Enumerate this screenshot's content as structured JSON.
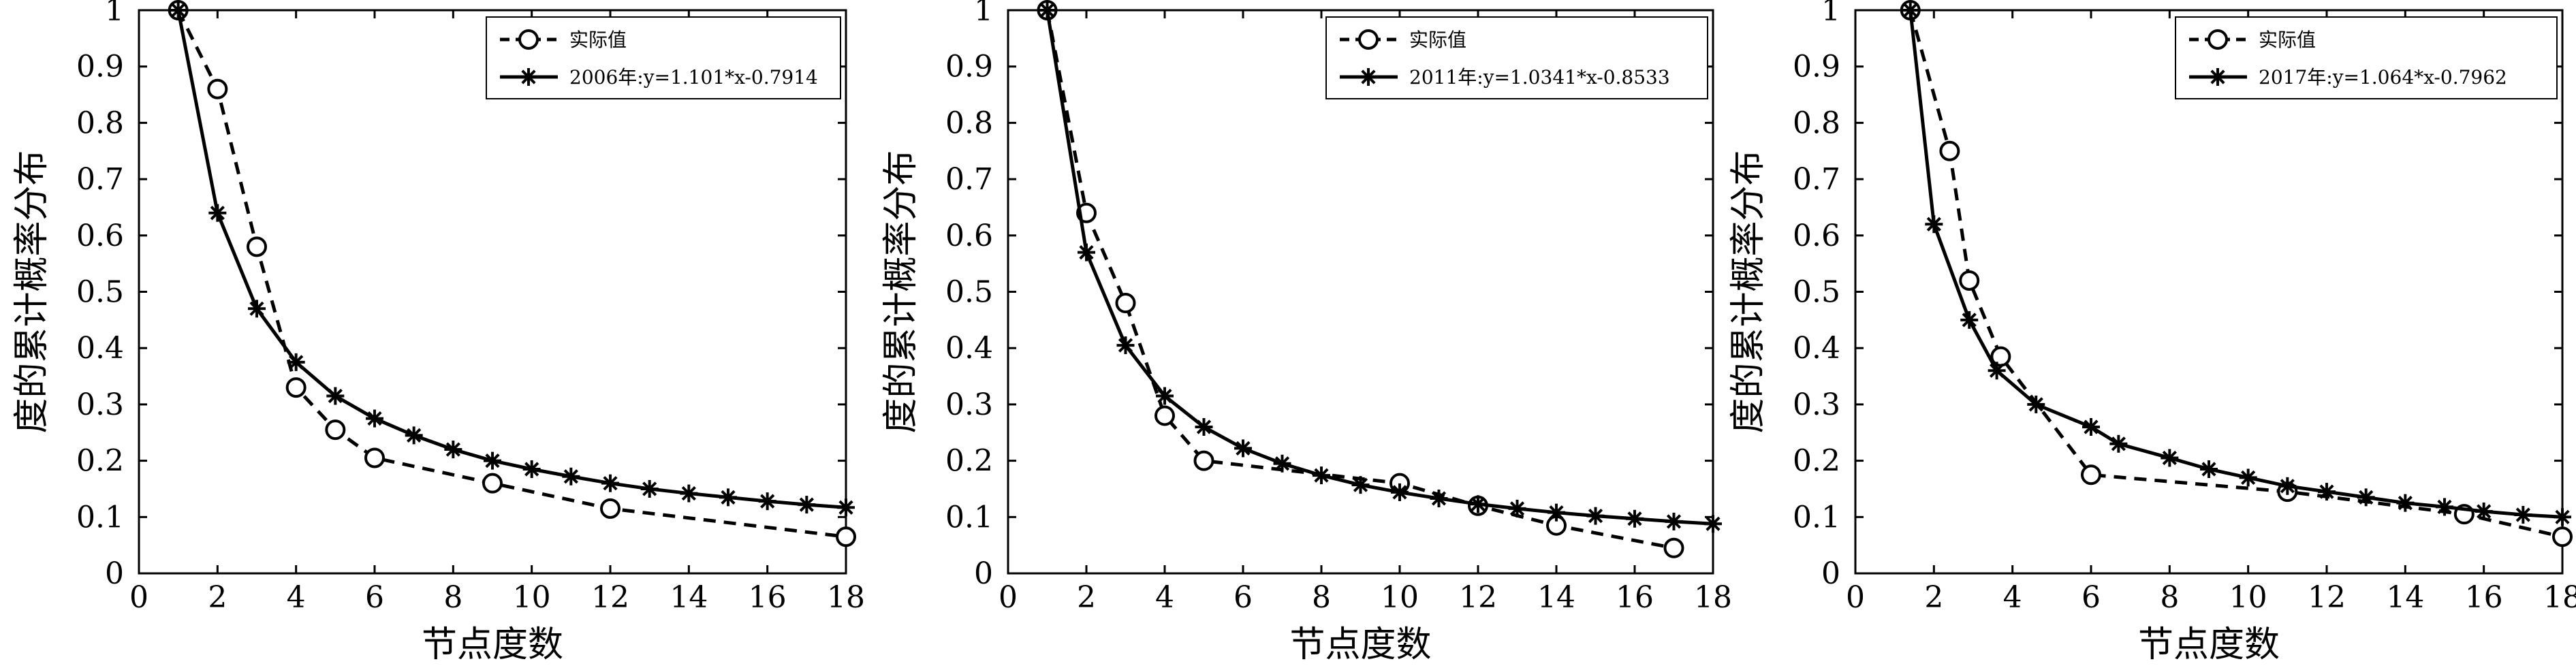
{
  "chart_data": [
    {
      "type": "line",
      "title": "",
      "xlabel": "节点度数",
      "ylabel": "度的累计概率分布",
      "xlim": [
        0,
        18
      ],
      "ylim": [
        0,
        1
      ],
      "xticks": [
        "0",
        "2",
        "4",
        "6",
        "8",
        "10",
        "12",
        "14",
        "16",
        "18"
      ],
      "yticks": [
        "0",
        "0.1",
        "0.2",
        "0.3",
        "0.4",
        "0.5",
        "0.6",
        "0.7",
        "0.8",
        "0.9",
        "1"
      ],
      "grid": false,
      "legend_position": "top-right",
      "series": [
        {
          "name": "实际值",
          "style": "dashed",
          "marker": "circle",
          "color": "#000000",
          "points": [
            [
              1,
              1.0
            ],
            [
              2,
              0.86
            ],
            [
              3,
              0.58
            ],
            [
              4,
              0.33
            ],
            [
              5,
              0.255
            ],
            [
              6,
              0.205
            ],
            [
              9,
              0.16
            ],
            [
              12,
              0.115
            ],
            [
              18,
              0.065
            ]
          ]
        },
        {
          "name": "2006年:y=1.101*x-0.7914",
          "style": "solid",
          "marker": "asterisk",
          "color": "#000000",
          "points": [
            [
              1,
              1.0
            ],
            [
              2,
              0.64
            ],
            [
              3,
              0.47
            ],
            [
              4,
              0.375
            ],
            [
              5,
              0.315
            ],
            [
              6,
              0.275
            ],
            [
              7,
              0.245
            ],
            [
              8,
              0.22
            ],
            [
              9,
              0.2
            ],
            [
              10,
              0.185
            ],
            [
              11,
              0.172
            ],
            [
              12,
              0.16
            ],
            [
              13,
              0.15
            ],
            [
              14,
              0.142
            ],
            [
              15,
              0.135
            ],
            [
              16,
              0.128
            ],
            [
              17,
              0.122
            ],
            [
              18,
              0.117
            ]
          ]
        }
      ]
    },
    {
      "type": "line",
      "title": "",
      "xlabel": "节点度数",
      "ylabel": "度的累计概率分布",
      "xlim": [
        0,
        18
      ],
      "ylim": [
        0,
        1
      ],
      "xticks": [
        "0",
        "2",
        "4",
        "6",
        "8",
        "10",
        "12",
        "14",
        "16",
        "18"
      ],
      "yticks": [
        "0",
        "0.1",
        "0.2",
        "0.3",
        "0.4",
        "0.5",
        "0.6",
        "0.7",
        "0.8",
        "0.9",
        "1"
      ],
      "grid": false,
      "legend_position": "top-right",
      "series": [
        {
          "name": "实际值",
          "style": "dashed",
          "marker": "circle",
          "color": "#000000",
          "points": [
            [
              1,
              1.0
            ],
            [
              2,
              0.64
            ],
            [
              3,
              0.48
            ],
            [
              4,
              0.28
            ],
            [
              5,
              0.2
            ],
            [
              10,
              0.16
            ],
            [
              12,
              0.12
            ],
            [
              14,
              0.085
            ],
            [
              17,
              0.045
            ]
          ]
        },
        {
          "name": "2011年:y=1.0341*x-0.8533",
          "style": "solid",
          "marker": "asterisk",
          "color": "#000000",
          "points": [
            [
              1,
              1.0
            ],
            [
              2,
              0.57
            ],
            [
              3,
              0.405
            ],
            [
              4,
              0.315
            ],
            [
              5,
              0.26
            ],
            [
              6,
              0.222
            ],
            [
              7,
              0.195
            ],
            [
              8,
              0.174
            ],
            [
              9,
              0.157
            ],
            [
              10,
              0.144
            ],
            [
              11,
              0.133
            ],
            [
              12,
              0.123
            ],
            [
              13,
              0.115
            ],
            [
              14,
              0.108
            ],
            [
              15,
              0.102
            ],
            [
              16,
              0.097
            ],
            [
              17,
              0.092
            ],
            [
              18,
              0.088
            ]
          ]
        }
      ]
    },
    {
      "type": "line",
      "title": "",
      "xlabel": "节点度数",
      "ylabel": "度的累计概率分布",
      "xlim": [
        0,
        18
      ],
      "ylim": [
        0,
        1
      ],
      "xticks": [
        "0",
        "2",
        "4",
        "6",
        "8",
        "10",
        "12",
        "14",
        "16",
        "18"
      ],
      "yticks": [
        "0",
        "0.1",
        "0.2",
        "0.3",
        "0.4",
        "0.5",
        "0.6",
        "0.7",
        "0.8",
        "0.9",
        "1"
      ],
      "grid": false,
      "legend_position": "top-right",
      "series": [
        {
          "name": "实际值",
          "style": "dashed",
          "marker": "circle",
          "color": "#000000",
          "points": [
            [
              1.4,
              1.0
            ],
            [
              2.4,
              0.75
            ],
            [
              2.9,
              0.52
            ],
            [
              3.7,
              0.385
            ],
            [
              6,
              0.175
            ],
            [
              11,
              0.145
            ],
            [
              15.5,
              0.105
            ],
            [
              18,
              0.065
            ]
          ]
        },
        {
          "name": "2017年:y=1.064*x-0.7962",
          "style": "solid",
          "marker": "asterisk",
          "color": "#000000",
          "points": [
            [
              1.4,
              1.0
            ],
            [
              2,
              0.62
            ],
            [
              2.9,
              0.45
            ],
            [
              3.6,
              0.36
            ],
            [
              4.6,
              0.3
            ],
            [
              6,
              0.26
            ],
            [
              6.7,
              0.23
            ],
            [
              8,
              0.205
            ],
            [
              9,
              0.185
            ],
            [
              10,
              0.17
            ],
            [
              11,
              0.155
            ],
            [
              12,
              0.145
            ],
            [
              13,
              0.135
            ],
            [
              14,
              0.125
            ],
            [
              15,
              0.118
            ],
            [
              16,
              0.11
            ],
            [
              17,
              0.104
            ],
            [
              18,
              0.1
            ]
          ]
        }
      ]
    }
  ]
}
